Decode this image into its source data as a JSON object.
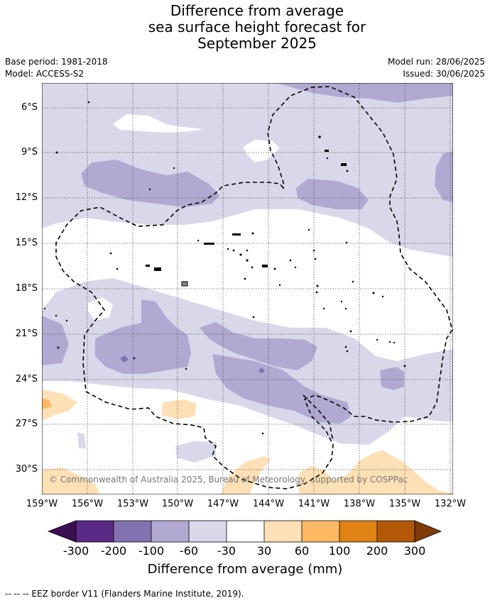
{
  "title_lines": [
    "Difference from average",
    "sea surface height forecast for",
    "September 2025"
  ],
  "meta": {
    "base_period": "Base period: 1981-2018",
    "model": "Model: ACCESS-S2",
    "model_run": "Model run: 28/06/2025",
    "issued": "Issued: 30/06/2025"
  },
  "map": {
    "lat_labels": [
      "6°S",
      "9°S",
      "12°S",
      "15°S",
      "18°S",
      "21°S",
      "24°S",
      "27°S",
      "30°S"
    ],
    "lon_labels": [
      "159°W",
      "156°W",
      "153°W",
      "150°W",
      "147°W",
      "144°W",
      "141°W",
      "138°W",
      "135°W",
      "132°W"
    ],
    "copyright": "© Commonwealth of Australia 2025, Bureau of Meteorology, supported by COSPPac"
  },
  "colorbar": {
    "title": "Difference from average (mm)",
    "labels": [
      "-300",
      "-200",
      "-100",
      "-60",
      "-30",
      "30",
      "60",
      "100",
      "200",
      "300"
    ],
    "colors": [
      "#3b0f50",
      "#5b2a86",
      "#8273b0",
      "#b1a9d2",
      "#d8d8ea",
      "#ffffff",
      "#fee0b6",
      "#fdb863",
      "#e08214",
      "#b35806",
      "#7f3b08"
    ]
  },
  "footer": "--  --  -- EEZ border V11 (Flanders Marine Institute, 2019)."
}
